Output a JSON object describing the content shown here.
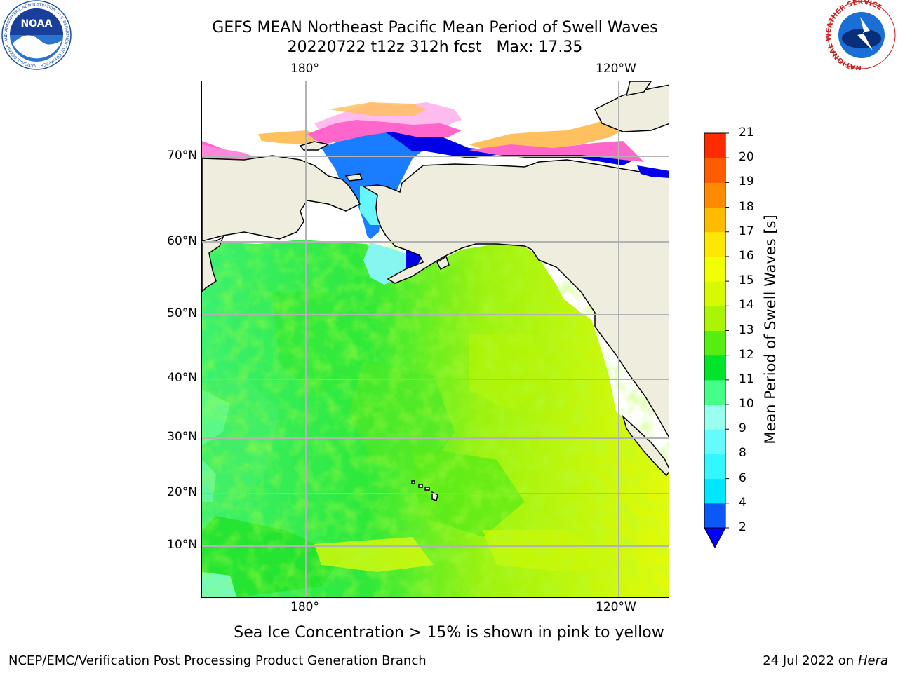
{
  "title_line1": "GEFS MEAN Northeast Pacific Mean Period of Swell Waves",
  "title_line2": "20220722 t12z 312h fcst   Max: 17.35",
  "lon_labels_top": [
    "180°",
    "120°W"
  ],
  "lon_labels_bottom": [
    "180°",
    "120°W"
  ],
  "lat_labels": [
    "70°N",
    "60°N",
    "50°N",
    "40°N",
    "30°N",
    "20°N",
    "10°N"
  ],
  "colorbar": {
    "label": "Mean Period of Swell Waves [s]",
    "ticks": [
      "2",
      "4",
      "6",
      "8",
      "9",
      "10",
      "11",
      "12",
      "13",
      "14",
      "15",
      "16",
      "17",
      "18",
      "19",
      "20",
      "21"
    ],
    "colors": [
      "#0a58f5",
      "#00e6ff",
      "#33f6ff",
      "#64fbfc",
      "#99ffee",
      "#44ff88",
      "#00e52a",
      "#55ee10",
      "#a9f505",
      "#d7fa00",
      "#f2ff00",
      "#fde705",
      "#ffbb00",
      "#ff8c00",
      "#ff5c00",
      "#ff2a00",
      "#ff0000"
    ],
    "extend_color": "#0000ff"
  },
  "footer_note": "Sea Ice Concentration > 15% is shown in pink to yellow",
  "footer_left": "NCEP/EMC/Verification Post Processing Product Generation Branch",
  "footer_right_date": "24 Jul 2022 on ",
  "footer_right_host": "Hera",
  "logo_left_text": "NOAA",
  "logo_left_ring": "NATIONAL OCEANIC AND ATMOSPHERIC ADMINISTRATION · U.S. DEPARTMENT OF COMMERCE",
  "logo_right_ring": "NATIONAL WEATHER SERVICE",
  "colors": {
    "land": "#efedde",
    "ocean_green": "#44e84a",
    "ocean_yellow": "#dcf90a",
    "ice_pink": "#ff66cc",
    "ice_orange": "#ffc060",
    "deep_blue": "#0000e6",
    "mid_blue": "#1a7cff",
    "cyan": "#66f6ff"
  }
}
